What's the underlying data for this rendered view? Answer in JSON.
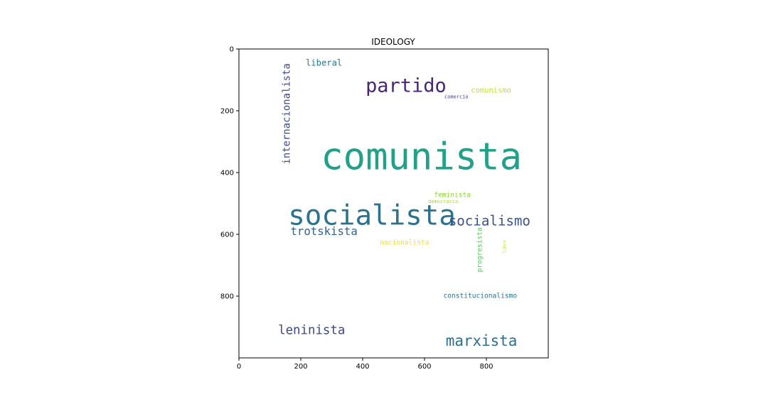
{
  "chart_data": {
    "type": "wordcloud",
    "title": "IDEOLOGY",
    "xlim": [
      0,
      1000
    ],
    "ylim": [
      1000,
      0
    ],
    "x_ticks": [
      "0",
      "200",
      "400",
      "600",
      "800"
    ],
    "y_ticks": [
      "0",
      "200",
      "400",
      "600",
      "800"
    ],
    "x_tick_values": [
      0,
      200,
      400,
      600,
      800
    ],
    "y_tick_values": [
      0,
      200,
      400,
      600,
      800
    ],
    "words": [
      {
        "text": "comunista",
        "x": 590,
        "y": 350,
        "size": 120,
        "color": "#21a08a",
        "vertical": false
      },
      {
        "text": "socialista",
        "x": 430,
        "y": 540,
        "size": 90,
        "color": "#2c728e",
        "vertical": false
      },
      {
        "text": "partido",
        "x": 540,
        "y": 120,
        "size": 62,
        "color": "#482575",
        "vertical": false
      },
      {
        "text": "socialismo",
        "x": 810,
        "y": 556,
        "size": 44,
        "color": "#3b528b",
        "vertical": false
      },
      {
        "text": "marxista",
        "x": 784,
        "y": 945,
        "size": 48,
        "color": "#2d708e",
        "vertical": false
      },
      {
        "text": "leninista",
        "x": 235,
        "y": 912,
        "size": 40,
        "color": "#3e4989",
        "vertical": false
      },
      {
        "text": "trotskista",
        "x": 275,
        "y": 590,
        "size": 36,
        "color": "#33638d",
        "vertical": false
      },
      {
        "text": "internacionalista",
        "x": 155,
        "y": 210,
        "size": 32,
        "color": "#3e4a89",
        "vertical": true
      },
      {
        "text": "liberal",
        "x": 275,
        "y": 45,
        "size": 28,
        "color": "#2a788e",
        "vertical": false
      },
      {
        "text": "comunismo",
        "x": 815,
        "y": 135,
        "size": 24,
        "color": "#cbe11e",
        "vertical": false
      },
      {
        "text": "constitucionalismo",
        "x": 780,
        "y": 800,
        "size": 22,
        "color": "#2c728e",
        "vertical": false
      },
      {
        "text": "nacionalista",
        "x": 535,
        "y": 628,
        "size": 22,
        "color": "#f1e51d",
        "vertical": false
      },
      {
        "text": "feminista",
        "x": 690,
        "y": 474,
        "size": 22,
        "color": "#90d743",
        "vertical": false
      },
      {
        "text": "progresista",
        "x": 779,
        "y": 650,
        "size": 22,
        "color": "#5ec962",
        "vertical": true
      },
      {
        "text": "democracia",
        "x": 660,
        "y": 494,
        "size": 16,
        "color": "#a2da37",
        "vertical": false
      },
      {
        "text": "comercio",
        "x": 703,
        "y": 155,
        "size": 16,
        "color": "#443983",
        "vertical": false
      },
      {
        "text": "libre",
        "x": 860,
        "y": 640,
        "size": 14,
        "color": "#b5de2b",
        "vertical": true
      }
    ]
  }
}
